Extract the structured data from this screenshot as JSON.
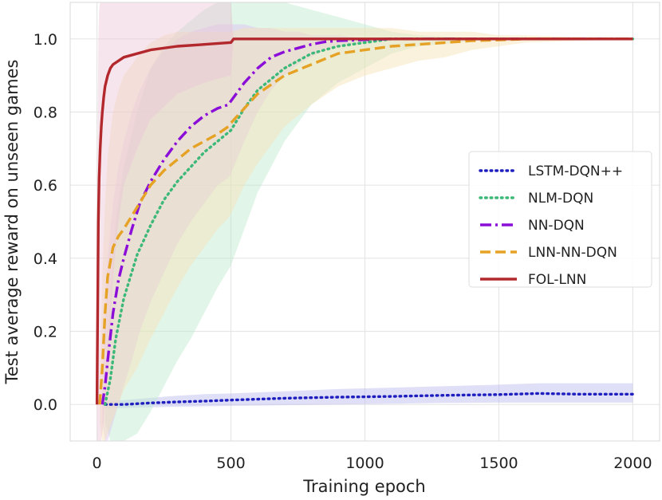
{
  "chart_data": {
    "type": "line",
    "title": "",
    "xlabel": "Training epoch",
    "ylabel": "Test average reward on unseen games",
    "xlim": [
      -100,
      2100
    ],
    "ylim": [
      -0.1,
      1.1
    ],
    "xticks": [
      0,
      500,
      1000,
      1500,
      2000
    ],
    "yticks": [
      0.0,
      0.2,
      0.4,
      0.6,
      0.8,
      1.0
    ],
    "xtick_labels": [
      "0",
      "500",
      "1000",
      "1500",
      "2000"
    ],
    "ytick_labels": [
      "0.0",
      "0.2",
      "0.4",
      "0.6",
      "0.8",
      "1.0"
    ],
    "grid": true,
    "legend_position": "center-right",
    "series": [
      {
        "name": "LSTM-DQN++",
        "color": "#1f1fbf",
        "style": "dotted",
        "band_color": "#b9b9ee",
        "x": [
          30,
          100,
          200,
          300,
          400,
          500,
          700,
          900,
          1100,
          1300,
          1500,
          1650,
          1800,
          2000
        ],
        "y": [
          0.0,
          0.0,
          0.004,
          0.007,
          0.009,
          0.012,
          0.017,
          0.02,
          0.022,
          0.025,
          0.027,
          0.03,
          0.028,
          0.028
        ],
        "lower": [
          -0.01,
          -0.01,
          -0.008,
          -0.006,
          -0.005,
          -0.004,
          -0.002,
          0.0,
          0.002,
          0.004,
          0.005,
          0.005,
          0.005,
          0.005
        ],
        "upper": [
          0.01,
          0.012,
          0.018,
          0.024,
          0.028,
          0.03,
          0.036,
          0.042,
          0.046,
          0.05,
          0.054,
          0.058,
          0.058,
          0.058
        ]
      },
      {
        "name": "NLM-DQN",
        "color": "#3cb878",
        "style": "dotted",
        "band_color": "#bfe8cf",
        "x": [
          30,
          50,
          70,
          100,
          150,
          200,
          250,
          300,
          350,
          400,
          450,
          500,
          550,
          600,
          700,
          800,
          900,
          1000,
          1100,
          1200,
          1500,
          2000
        ],
        "y": [
          0.0,
          0.07,
          0.18,
          0.29,
          0.41,
          0.49,
          0.56,
          0.61,
          0.65,
          0.69,
          0.72,
          0.75,
          0.81,
          0.86,
          0.92,
          0.96,
          0.98,
          0.99,
          1.0,
          1.0,
          1.0,
          1.0
        ],
        "lower": [
          -0.05,
          -0.1,
          -0.1,
          -0.1,
          -0.08,
          -0.02,
          0.05,
          0.12,
          0.18,
          0.25,
          0.32,
          0.38,
          0.48,
          0.58,
          0.72,
          0.82,
          0.88,
          0.92,
          0.96,
          0.98,
          1.0,
          1.0
        ],
        "upper": [
          0.05,
          0.3,
          0.5,
          0.65,
          0.8,
          0.92,
          0.98,
          1.02,
          1.05,
          1.08,
          1.1,
          1.1,
          1.1,
          1.1,
          1.1,
          1.08,
          1.06,
          1.04,
          1.02,
          1.01,
          1.0,
          1.0
        ]
      },
      {
        "name": "NN-DQN",
        "color": "#8a0ed8",
        "style": "dashdot",
        "band_color": "#dcc0f2",
        "x": [
          20,
          30,
          40,
          60,
          80,
          100,
          130,
          160,
          200,
          250,
          300,
          350,
          400,
          450,
          490,
          500,
          550,
          600,
          650,
          700,
          750,
          800,
          850,
          900,
          1000,
          1100,
          1200,
          1500,
          2000
        ],
        "y": [
          0.0,
          0.05,
          0.12,
          0.25,
          0.34,
          0.4,
          0.48,
          0.55,
          0.61,
          0.67,
          0.72,
          0.76,
          0.79,
          0.81,
          0.82,
          0.83,
          0.88,
          0.92,
          0.95,
          0.965,
          0.975,
          0.985,
          0.992,
          0.995,
          0.998,
          1.0,
          1.0,
          1.0,
          1.0
        ],
        "lower": [
          -0.05,
          -0.1,
          -0.1,
          -0.05,
          0.0,
          0.05,
          0.12,
          0.2,
          0.28,
          0.36,
          0.44,
          0.5,
          0.55,
          0.6,
          0.62,
          0.63,
          0.72,
          0.8,
          0.86,
          0.9,
          0.93,
          0.95,
          0.97,
          0.98,
          0.99,
          1.0,
          1.0,
          1.0,
          1.0
        ],
        "upper": [
          0.05,
          0.25,
          0.4,
          0.55,
          0.65,
          0.72,
          0.8,
          0.86,
          0.92,
          0.97,
          1.0,
          1.02,
          1.03,
          1.04,
          1.04,
          1.04,
          1.04,
          1.03,
          1.03,
          1.02,
          1.02,
          1.01,
          1.01,
          1.01,
          1.0,
          1.0,
          1.0,
          1.0,
          1.0
        ]
      },
      {
        "name": "LNN-NN-DQN",
        "color": "#e5a225",
        "style": "dashed",
        "band_color": "#f6e3b4",
        "x": [
          10,
          20,
          30,
          40,
          60,
          80,
          100,
          150,
          200,
          250,
          300,
          350,
          400,
          450,
          490,
          500,
          550,
          600,
          700,
          800,
          900,
          1000,
          1100,
          1200,
          1300,
          1400,
          1500,
          1600,
          2000
        ],
        "y": [
          0.0,
          0.1,
          0.25,
          0.35,
          0.43,
          0.46,
          0.48,
          0.54,
          0.6,
          0.64,
          0.67,
          0.7,
          0.72,
          0.74,
          0.76,
          0.77,
          0.81,
          0.85,
          0.9,
          0.93,
          0.96,
          0.97,
          0.98,
          0.985,
          0.99,
          0.995,
          0.997,
          1.0,
          1.0
        ],
        "lower": [
          -0.05,
          -0.1,
          -0.1,
          -0.08,
          -0.04,
          0.0,
          0.04,
          0.1,
          0.18,
          0.25,
          0.32,
          0.38,
          0.43,
          0.48,
          0.51,
          0.52,
          0.6,
          0.66,
          0.76,
          0.82,
          0.87,
          0.9,
          0.92,
          0.94,
          0.95,
          0.97,
          0.98,
          0.99,
          1.0
        ],
        "upper": [
          0.05,
          0.35,
          0.55,
          0.68,
          0.8,
          0.86,
          0.9,
          0.95,
          0.99,
          1.01,
          1.02,
          1.02,
          1.02,
          1.02,
          1.02,
          1.02,
          1.03,
          1.03,
          1.03,
          1.03,
          1.03,
          1.03,
          1.03,
          1.02,
          1.02,
          1.02,
          1.01,
          1.01,
          1.0
        ]
      },
      {
        "name": "FOL-LNN",
        "color": "#b3282d",
        "style": "solid",
        "band_color": "#ecc6d6",
        "x": [
          0,
          1,
          3,
          5,
          8,
          12,
          16,
          20,
          25,
          30,
          40,
          50,
          60,
          80,
          100,
          150,
          200,
          300,
          400,
          495,
          500,
          505,
          510,
          600,
          800,
          1000,
          1500,
          2000
        ],
        "y": [
          0.0,
          0.1,
          0.3,
          0.5,
          0.62,
          0.7,
          0.76,
          0.8,
          0.84,
          0.87,
          0.9,
          0.92,
          0.93,
          0.94,
          0.95,
          0.96,
          0.97,
          0.98,
          0.985,
          0.99,
          0.99,
          0.995,
          1.0,
          1.0,
          1.0,
          1.0,
          1.0,
          1.0
        ],
        "lower": [
          -0.05,
          -0.1,
          -0.1,
          -0.1,
          -0.1,
          -0.1,
          -0.1,
          -0.08,
          -0.05,
          0.0,
          0.08,
          0.2,
          0.35,
          0.5,
          0.6,
          0.7,
          0.78,
          0.85,
          0.88,
          0.9,
          0.9,
          0.95,
          1.0,
          1.0,
          1.0,
          1.0,
          1.0,
          1.0
        ],
        "upper": [
          0.05,
          0.4,
          0.8,
          1.0,
          1.08,
          1.1,
          1.1,
          1.1,
          1.1,
          1.1,
          1.1,
          1.1,
          1.1,
          1.1,
          1.1,
          1.1,
          1.1,
          1.1,
          1.1,
          1.1,
          1.1,
          1.05,
          1.0,
          1.0,
          1.0,
          1.0,
          1.0,
          1.0
        ]
      }
    ]
  }
}
